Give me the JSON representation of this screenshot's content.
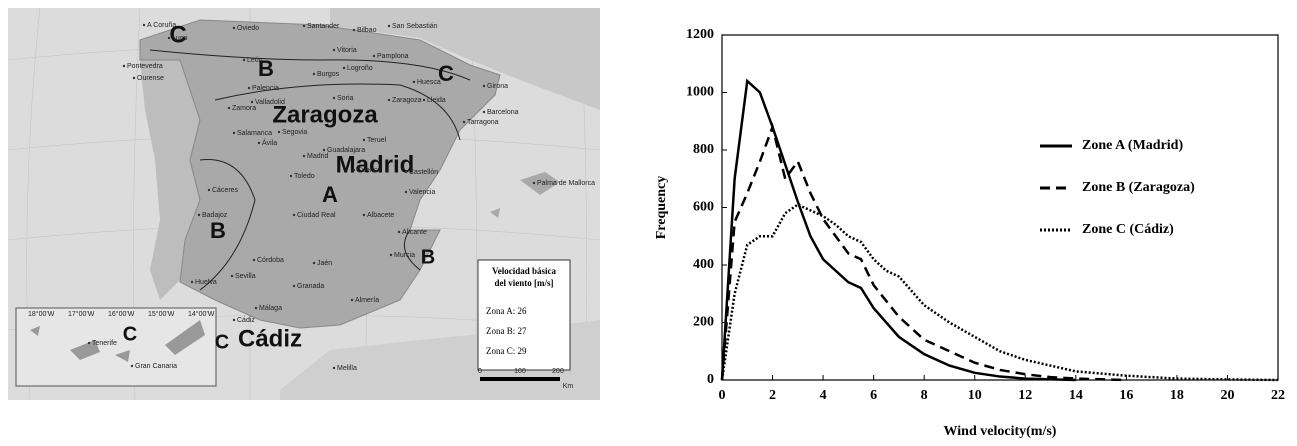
{
  "map": {
    "zones": [
      "C",
      "B",
      "C",
      "Zaragoza",
      "Madrid",
      "A",
      "B",
      "B",
      "Cádiz",
      "C",
      "C"
    ],
    "cities": [
      "A Coruña",
      "Lugo",
      "Oviedo",
      "Santander",
      "Bilbao",
      "San Sebastián",
      "Pontevedra",
      "Ourense",
      "León",
      "Vitoria",
      "Pamplona",
      "Logroño",
      "Burgos",
      "Palencia",
      "Huesca",
      "Girona",
      "Lleida",
      "Zamora",
      "Valladolid",
      "Soria",
      "Zaragoza",
      "Barcelona",
      "Tarragona",
      "Salamanca",
      "Segovia",
      "Ávila",
      "Madrid",
      "Guadalajara",
      "Teruel",
      "Castellón",
      "Cáceres",
      "Toledo",
      "Cuenca",
      "Valencia",
      "Palma de Mallorca",
      "Badajoz",
      "Ciudad Real",
      "Albacete",
      "Alicante",
      "Córdoba",
      "Jaén",
      "Murcia",
      "Sevilla",
      "Huelva",
      "Granada",
      "Almería",
      "Málaga",
      "Cádiz",
      "Melilla",
      "Tenerife",
      "Gran Canaria"
    ],
    "legend": {
      "title": [
        "Velocidad básica",
        "del viento [m/s]"
      ],
      "entries": [
        "Zona A: 26",
        "Zona B: 27",
        "Zona C: 29"
      ]
    },
    "scale": [
      "0",
      "100",
      "200",
      "Km"
    ],
    "inset_ticks": [
      "18°00'W",
      "17°00'W",
      "16°00'W",
      "15°00'W",
      "14°00'W"
    ]
  },
  "chart_data": {
    "type": "line",
    "xlabel": "Wind velocity(m/s)",
    "ylabel": "Frequency",
    "xlim": [
      0,
      22
    ],
    "ylim": [
      0,
      1200
    ],
    "xticks": [
      0,
      2,
      4,
      6,
      8,
      10,
      12,
      14,
      16,
      18,
      20,
      22
    ],
    "yticks": [
      0,
      200,
      400,
      600,
      800,
      1000,
      1200
    ],
    "series": [
      {
        "name": "Zone A (Madrid)",
        "color": "#000000",
        "line_style": "solid",
        "x": [
          0,
          0.5,
          1,
          1.5,
          2,
          2.5,
          3,
          3.5,
          4,
          4.5,
          5,
          5.5,
          6,
          7,
          8,
          9,
          10,
          11,
          12,
          14
        ],
        "values": [
          0,
          700,
          1040,
          1000,
          880,
          750,
          620,
          500,
          420,
          380,
          340,
          320,
          250,
          150,
          90,
          50,
          25,
          12,
          5,
          0
        ]
      },
      {
        "name": "Zone B (Zaragoza)",
        "color": "#000000",
        "line_style": "dashed",
        "x": [
          0,
          0.5,
          1,
          1.5,
          2,
          2.5,
          3,
          3.5,
          4,
          4.5,
          5,
          5.5,
          6,
          7,
          8,
          9,
          10,
          11,
          12,
          13,
          14,
          16
        ],
        "values": [
          0,
          550,
          650,
          760,
          880,
          700,
          760,
          650,
          560,
          500,
          440,
          420,
          330,
          220,
          140,
          100,
          60,
          35,
          20,
          10,
          5,
          0
        ]
      },
      {
        "name": "Zone C (Cádiz)",
        "color": "#000000",
        "line_style": "dotted",
        "x": [
          0,
          0.5,
          1,
          1.5,
          2,
          2.5,
          3,
          3.5,
          4,
          4.5,
          5,
          5.5,
          6,
          6.5,
          7,
          8,
          9,
          10,
          11,
          12,
          13,
          14,
          16,
          18,
          20,
          22
        ],
        "values": [
          0,
          300,
          470,
          500,
          500,
          580,
          610,
          590,
          570,
          540,
          500,
          480,
          420,
          380,
          360,
          260,
          200,
          150,
          100,
          70,
          50,
          30,
          15,
          5,
          2,
          0
        ]
      }
    ]
  }
}
